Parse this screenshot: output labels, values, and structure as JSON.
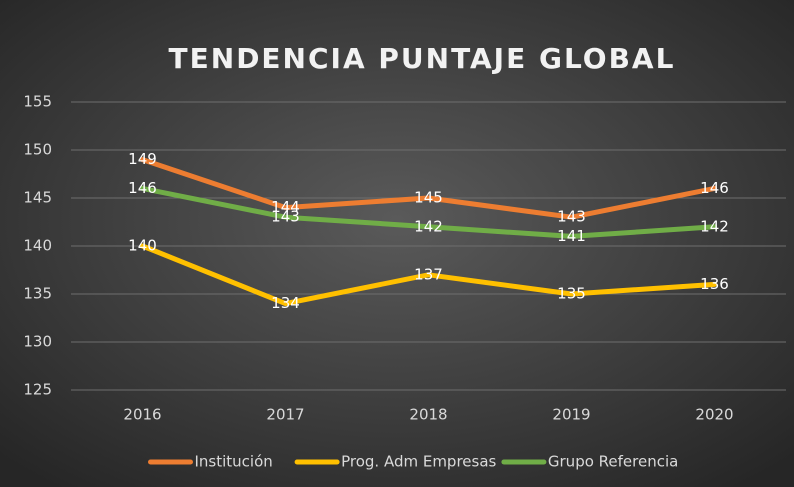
{
  "chart_data": {
    "type": "line",
    "title": "TENDENCIA PUNTAJE GLOBAL",
    "categories": [
      "2016",
      "2017",
      "2018",
      "2019",
      "2020"
    ],
    "series": [
      {
        "name": "Institución",
        "color": "#ed7d31",
        "values": [
          149,
          144,
          145,
          143,
          146
        ]
      },
      {
        "name": "Prog. Adm Empresas",
        "color": "#ffc000",
        "values": [
          140,
          134,
          137,
          135,
          136
        ]
      },
      {
        "name": "Grupo Referencia",
        "color": "#70ad47",
        "values": [
          146,
          143,
          142,
          141,
          142
        ]
      }
    ],
    "ylim": [
      125,
      155
    ],
    "yticks": [
      125,
      130,
      135,
      140,
      145,
      150,
      155
    ],
    "grid": true,
    "legend": "bottom"
  }
}
